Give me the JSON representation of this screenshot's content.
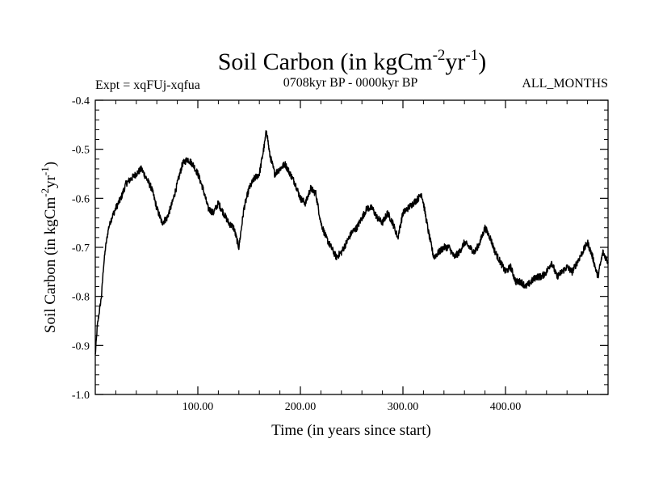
{
  "chart_data": {
    "type": "line",
    "title_main": "Soil Carbon (in kgCm",
    "title_sup1": "-2",
    "title_mid": "yr",
    "title_sup2": "-1",
    "title_end": ")",
    "expt": "Expt = xqFUj-xqfua",
    "period": "0708kyr BP - 0000kyr BP",
    "season": "ALL_MONTHS",
    "xlabel": "Time (in years since start)",
    "ylabel_main": "Soil Carbon (in kgCm",
    "ylabel_sup1": "-2",
    "ylabel_mid": "yr",
    "ylabel_sup2": "-1",
    "ylabel_end": ")",
    "xlim": [
      0,
      500
    ],
    "ylim": [
      -1.0,
      -0.4
    ],
    "xticks": [
      {
        "value": 100,
        "label": "100.00"
      },
      {
        "value": 200,
        "label": "200.00"
      },
      {
        "value": 300,
        "label": "300.00"
      },
      {
        "value": 400,
        "label": "400.00"
      }
    ],
    "yticks": [
      {
        "value": -0.4,
        "label": "-0.4"
      },
      {
        "value": -0.5,
        "label": "-0.5"
      },
      {
        "value": -0.6,
        "label": "-0.6"
      },
      {
        "value": -0.7,
        "label": "-0.7"
      },
      {
        "value": -0.8,
        "label": "-0.8"
      },
      {
        "value": -0.9,
        "label": "-0.9"
      },
      {
        "value": -1.0,
        "label": "-1.0"
      }
    ],
    "series": [
      {
        "name": "Soil Carbon",
        "x": [
          0,
          2,
          4,
          6,
          8,
          10,
          13,
          16,
          20,
          25,
          30,
          35,
          40,
          45,
          50,
          55,
          60,
          65,
          70,
          75,
          80,
          85,
          90,
          95,
          100,
          105,
          110,
          115,
          120,
          125,
          130,
          135,
          140,
          145,
          150,
          155,
          160,
          165,
          167,
          170,
          175,
          180,
          185,
          190,
          195,
          200,
          205,
          210,
          215,
          220,
          225,
          230,
          235,
          240,
          245,
          250,
          255,
          260,
          265,
          270,
          275,
          280,
          285,
          290,
          295,
          300,
          305,
          310,
          315,
          318,
          320,
          325,
          330,
          335,
          340,
          345,
          350,
          355,
          360,
          365,
          370,
          375,
          380,
          385,
          390,
          395,
          400,
          405,
          410,
          415,
          420,
          425,
          430,
          435,
          440,
          445,
          450,
          455,
          460,
          465,
          470,
          475,
          480,
          485,
          490,
          495,
          500
        ],
        "y": [
          -0.92,
          -0.86,
          -0.83,
          -0.8,
          -0.74,
          -0.7,
          -0.66,
          -0.64,
          -0.62,
          -0.6,
          -0.57,
          -0.56,
          -0.55,
          -0.54,
          -0.56,
          -0.58,
          -0.62,
          -0.65,
          -0.64,
          -0.61,
          -0.57,
          -0.53,
          -0.52,
          -0.53,
          -0.55,
          -0.58,
          -0.62,
          -0.63,
          -0.61,
          -0.63,
          -0.65,
          -0.66,
          -0.7,
          -0.62,
          -0.58,
          -0.56,
          -0.55,
          -0.49,
          -0.46,
          -0.51,
          -0.55,
          -0.54,
          -0.53,
          -0.55,
          -0.57,
          -0.6,
          -0.61,
          -0.58,
          -0.59,
          -0.65,
          -0.68,
          -0.7,
          -0.72,
          -0.71,
          -0.69,
          -0.67,
          -0.66,
          -0.64,
          -0.62,
          -0.62,
          -0.64,
          -0.65,
          -0.63,
          -0.65,
          -0.68,
          -0.63,
          -0.62,
          -0.61,
          -0.6,
          -0.59,
          -0.61,
          -0.67,
          -0.72,
          -0.71,
          -0.7,
          -0.7,
          -0.72,
          -0.71,
          -0.69,
          -0.7,
          -0.71,
          -0.69,
          -0.66,
          -0.68,
          -0.71,
          -0.73,
          -0.75,
          -0.74,
          -0.77,
          -0.77,
          -0.78,
          -0.77,
          -0.76,
          -0.76,
          -0.75,
          -0.73,
          -0.76,
          -0.75,
          -0.74,
          -0.75,
          -0.73,
          -0.71,
          -0.69,
          -0.72,
          -0.76,
          -0.71,
          -0.73
        ]
      }
    ]
  }
}
